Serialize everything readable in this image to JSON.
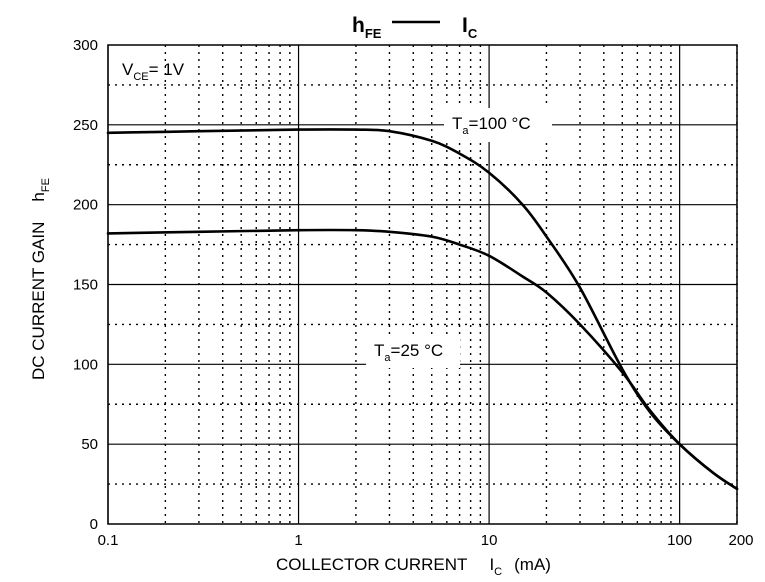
{
  "chart_data": {
    "type": "line",
    "title": {
      "left_main": "h",
      "left_sub": "FE",
      "right_main": "I",
      "right_sub": "C"
    },
    "xlabel": {
      "text": "COLLECTOR CURRENT",
      "symbol": "I",
      "symbol_sub": "C",
      "unit": "(mA)"
    },
    "ylabel": {
      "text": "DC CURRENT GAIN",
      "symbol": "h",
      "symbol_sub": "FE"
    },
    "x_scale": "log",
    "xlim": [
      0.1,
      200
    ],
    "ylim": [
      0,
      300
    ],
    "x_ticks": [
      "0.1",
      "1",
      "10",
      "100",
      "200"
    ],
    "y_ticks": [
      "0",
      "50",
      "100",
      "150",
      "200",
      "250",
      "300"
    ],
    "grid": true,
    "condition": {
      "main": "V",
      "sub": "CE",
      "rest": "= 1V"
    },
    "series": [
      {
        "name": "Ta=100 °C",
        "label": {
          "main": "T",
          "sub": "a",
          "rest": "=100 °C"
        },
        "x": [
          0.1,
          0.3,
          1,
          2,
          3,
          5,
          7,
          10,
          15,
          20,
          30,
          50,
          70,
          100,
          150,
          200
        ],
        "y": [
          245,
          246,
          247,
          247,
          246,
          240,
          232,
          220,
          200,
          180,
          148,
          97,
          70,
          50,
          32,
          22
        ]
      },
      {
        "name": "Ta=25 °C",
        "label": {
          "main": "T",
          "sub": "a",
          "rest": "=25 °C"
        },
        "x": [
          0.1,
          0.3,
          1,
          2,
          3,
          5,
          7,
          10,
          15,
          20,
          30,
          50,
          70,
          100,
          150,
          200
        ],
        "y": [
          182,
          183,
          184,
          184,
          183,
          180,
          175,
          168,
          155,
          145,
          125,
          95,
          71,
          50,
          32,
          22
        ]
      }
    ]
  }
}
